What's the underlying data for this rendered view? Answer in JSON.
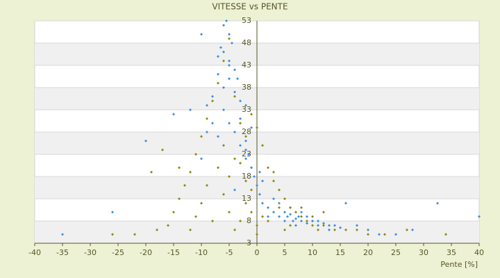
{
  "chart_data": {
    "type": "scatter",
    "title": "VITESSE vs PENTE",
    "x_label": "Pente [%]",
    "xlim": [
      -40,
      40
    ],
    "xticks": [
      -40,
      -35,
      -30,
      -25,
      -20,
      -15,
      -10,
      -5,
      0,
      5,
      10,
      15,
      20,
      25,
      30,
      35,
      40
    ],
    "ylim": [
      3,
      53
    ],
    "yticks": [
      3,
      8,
      13,
      18,
      23,
      28,
      33,
      38,
      43,
      48,
      53
    ],
    "grid": true,
    "series": [
      {
        "color": "#3d8fdc",
        "x": [
          -6,
          -5.5,
          -5,
          -4.5,
          -6.5,
          -7,
          -5,
          -4,
          -3.5,
          -6,
          -8,
          -9,
          -10,
          -5,
          -4,
          -3,
          -2,
          -1,
          -0.5,
          -7,
          -6,
          -5,
          -8,
          -3,
          -2,
          -1.5,
          -1,
          0,
          0.5,
          1,
          2,
          3,
          4,
          5,
          5.5,
          6,
          6.5,
          7,
          7.5,
          8,
          9,
          10,
          11,
          12,
          13,
          14,
          15,
          3,
          4,
          6,
          8,
          10,
          16,
          18,
          20,
          22,
          25,
          28,
          32.5,
          40,
          -12,
          -15,
          -20,
          -26,
          -35,
          -10,
          -4,
          -2,
          1,
          -6,
          -5,
          -7,
          -4,
          -3,
          -9,
          -2,
          -1,
          0.5,
          2,
          5,
          7,
          9,
          11,
          13
        ],
        "values": [
          52,
          53,
          50,
          48,
          47,
          45,
          44,
          42,
          40,
          38,
          36,
          34,
          50,
          30,
          28,
          25,
          22,
          20,
          18,
          27,
          33,
          40,
          30,
          35,
          26,
          23,
          20,
          16,
          14,
          12,
          11,
          10,
          9,
          10,
          9,
          9.5,
          8,
          8.5,
          9,
          8,
          7.5,
          8,
          7,
          7.5,
          7,
          7,
          6.5,
          13,
          12,
          11,
          10,
          8,
          12,
          7,
          6,
          5,
          5,
          6,
          12,
          9,
          33,
          32,
          26,
          10,
          5,
          22,
          15,
          24,
          17,
          46,
          43,
          41,
          37,
          31,
          28,
          34,
          29,
          19,
          9,
          8,
          7,
          9,
          8,
          6
        ]
      },
      {
        "color": "#8a8a10",
        "x": [
          -5,
          -6,
          -7,
          -8,
          -9,
          -10,
          -11,
          -12,
          -13,
          -14,
          -15,
          -16,
          -17,
          -19,
          -22,
          -26,
          -4,
          -3,
          -2,
          -1,
          0,
          1,
          2,
          3,
          4,
          5,
          6,
          7,
          8,
          9,
          10,
          11,
          12,
          14,
          16,
          18,
          20,
          23,
          27,
          34,
          -6,
          -5,
          -4,
          -3,
          -2,
          -1,
          0,
          0,
          -8,
          -10,
          -12,
          -7,
          -6,
          -5,
          -3,
          -9,
          1,
          2,
          4,
          6,
          8,
          10,
          3,
          -1,
          -4,
          -2,
          -11,
          -14,
          -18,
          5,
          12
        ],
        "values": [
          49,
          44,
          39,
          35,
          31,
          27,
          23,
          19,
          16,
          13,
          10,
          7,
          24,
          19,
          5,
          5,
          36,
          30,
          27,
          32,
          29,
          25,
          20,
          17,
          15,
          13,
          11,
          10,
          9,
          8,
          7,
          6,
          7,
          6,
          6,
          6,
          5,
          5,
          6,
          5,
          14,
          10,
          6,
          8,
          12,
          15,
          5,
          7,
          8,
          12,
          6,
          20,
          25,
          18,
          21,
          16,
          9,
          8,
          11,
          7,
          11,
          9,
          19,
          10,
          22,
          17,
          9,
          20,
          6,
          6,
          10
        ]
      }
    ]
  }
}
